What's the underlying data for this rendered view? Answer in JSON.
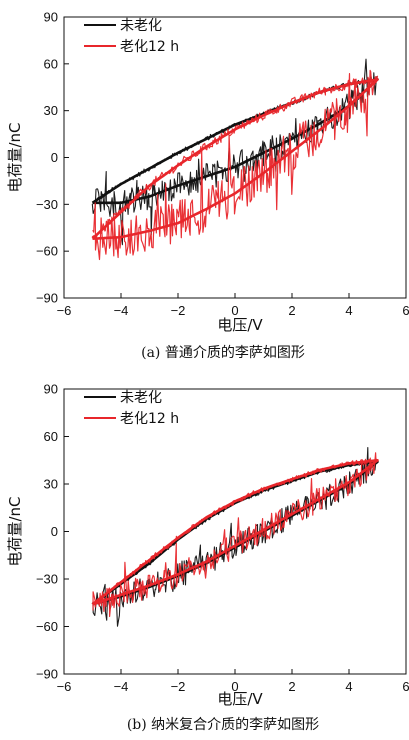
{
  "chart_data": [
    {
      "type": "line",
      "caption": "(a) 普通介质的李萨如图形",
      "xlabel": "电压/V",
      "ylabel": "电荷量/nC",
      "xlim": [
        -6,
        6
      ],
      "ylim": [
        -90,
        90
      ],
      "xticks": [
        "−6",
        "−4",
        "−2",
        "0",
        "2",
        "4",
        "6"
      ],
      "yticks": [
        "90",
        "60",
        "30",
        "0",
        "−30",
        "−60",
        "−90"
      ],
      "legend_position": "top-left",
      "series": [
        {
          "name": "未老化",
          "color": "#111111",
          "x": [
            -5,
            -4,
            -3,
            -2,
            -1,
            0,
            1,
            2,
            3,
            4,
            5,
            4,
            3,
            2,
            1,
            0,
            -1,
            -2,
            -3,
            -4,
            -5
          ],
          "y": [
            -29,
            -17,
            -7,
            3,
            12,
            21,
            28,
            35,
            42,
            47,
            50,
            33,
            22,
            12,
            3,
            -6,
            -12,
            -18,
            -25,
            -29,
            -29
          ]
        },
        {
          "name": "老化12 h",
          "color": "#e8262b",
          "x": [
            -5,
            -4,
            -3,
            -2,
            -1,
            0,
            1,
            2,
            3,
            4,
            5,
            4,
            3,
            2,
            1,
            0,
            -1,
            -2,
            -3,
            -4,
            -5
          ],
          "y": [
            -52,
            -35,
            -18,
            -5,
            7,
            18,
            27,
            35,
            42,
            47,
            50,
            33,
            18,
            4,
            -10,
            -23,
            -33,
            -42,
            -47,
            -51,
            -52
          ]
        }
      ]
    },
    {
      "type": "line",
      "caption": "(b) 纳米复合介质的李萨如图形",
      "xlabel": "电压/V",
      "ylabel": "电荷量/nC",
      "xlim": [
        -6,
        6
      ],
      "ylim": [
        -90,
        90
      ],
      "xticks": [
        "−6",
        "−4",
        "−2",
        "0",
        "2",
        "4",
        "6"
      ],
      "yticks": [
        "90",
        "60",
        "30",
        "0",
        "−30",
        "−60",
        "−90"
      ],
      "legend_position": "top-left",
      "series": [
        {
          "name": "未老化",
          "color": "#111111",
          "x": [
            -5,
            -4,
            -3,
            -2,
            -1,
            0,
            1,
            2,
            3,
            4,
            5,
            4,
            3,
            2,
            1,
            0,
            -1,
            -2,
            -3,
            -4,
            -5
          ],
          "y": [
            -46,
            -33,
            -20,
            -5,
            8,
            18,
            26,
            32,
            38,
            42,
            44,
            30,
            20,
            10,
            0,
            -10,
            -20,
            -28,
            -35,
            -41,
            -46
          ]
        },
        {
          "name": "老化12 h",
          "color": "#e8262b",
          "x": [
            -5,
            -4,
            -3,
            -2,
            -1,
            0,
            1,
            2,
            3,
            4,
            5,
            4,
            3,
            2,
            1,
            0,
            -1,
            -2,
            -3,
            -4,
            -5
          ],
          "y": [
            -46,
            -32,
            -18,
            -4,
            9,
            19,
            27,
            33,
            39,
            43,
            45,
            31,
            21,
            11,
            1,
            -9,
            -19,
            -27,
            -34,
            -40,
            -46
          ]
        }
      ]
    }
  ]
}
